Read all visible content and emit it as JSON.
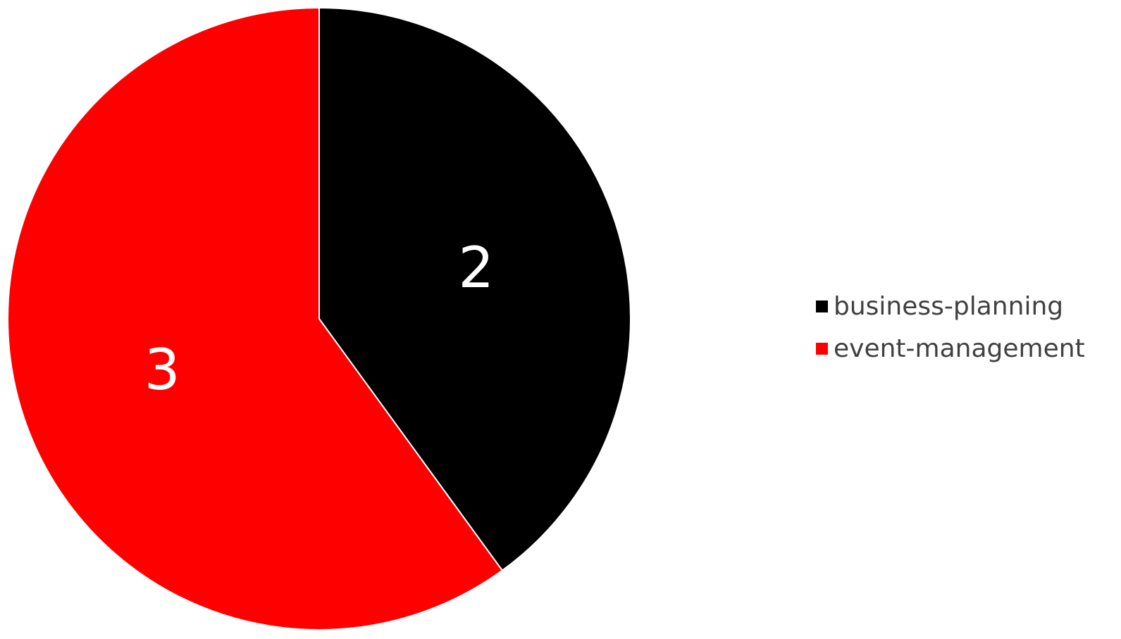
{
  "chart_data": {
    "type": "pie",
    "categories": [
      "business-planning",
      "event-management"
    ],
    "values": [
      2,
      3
    ],
    "colors": [
      "#000000",
      "#ff0000"
    ],
    "data_labels": [
      "2",
      "3"
    ],
    "start_angle": "12 o'clock",
    "direction": "clockwise",
    "legend_position": "right",
    "label_color": "#ffffff"
  }
}
